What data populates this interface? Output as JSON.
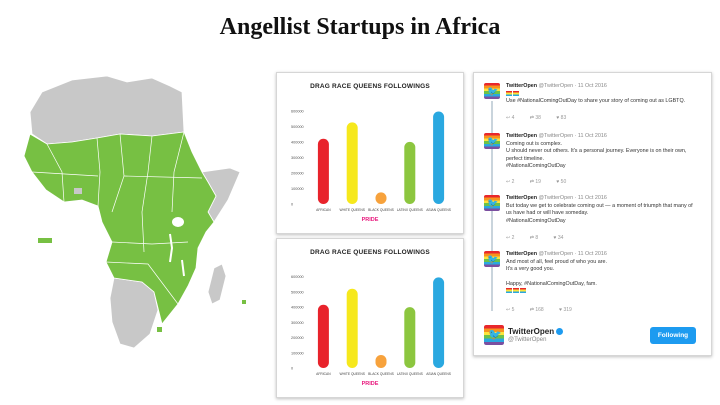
{
  "title": "Angellist Startups in Africa",
  "colors": {
    "africa_green": "#77c043",
    "africa_gray": "#c8c8c8"
  },
  "charts": [
    {
      "title": "DRAG RACE QUEENS FOLLOWINGS",
      "brand": "PRIDE",
      "yticks": [
        "600000",
        "500000",
        "400000",
        "300000",
        "200000",
        "100000",
        "0"
      ]
    },
    {
      "title": "DRAG RACE QUEENS FOLLOWINGS",
      "brand": "PRIDE",
      "yticks": [
        "600000",
        "500000",
        "400000",
        "300000",
        "200000",
        "100000",
        "0"
      ]
    }
  ],
  "chart_data": [
    {
      "type": "bar",
      "title": "DRAG RACE QUEENS FOLLOWINGS",
      "categories": [
        "AFRICAN",
        "WHITE QUEENS",
        "BLACK QUEENS",
        "LATINX QUEENS",
        "ASIAN QUEENS"
      ],
      "values": [
        420000,
        525000,
        75000,
        400000,
        595000
      ],
      "colors": [
        "#e8232b",
        "#f6e81c",
        "#f7a23c",
        "#8cc63f",
        "#2aa8e0"
      ],
      "ylim": [
        0,
        650000
      ],
      "grid": false
    },
    {
      "type": "bar",
      "title": "DRAG RACE QUEENS FOLLOWINGS",
      "categories": [
        "AFRICAN",
        "WHITE QUEENS",
        "BLACK QUEENS",
        "LATINX QUEENS",
        "ASIAN QUEENS"
      ],
      "values": [
        415000,
        520000,
        85000,
        400000,
        595000
      ],
      "colors": [
        "#e8232b",
        "#f6e81c",
        "#f7a23c",
        "#8cc63f",
        "#2aa8e0"
      ],
      "ylim": [
        0,
        650000
      ],
      "grid": false
    }
  ],
  "tweets": [
    {
      "name": "TwitterOpen",
      "handle": "@TwitterOpen · 11 Oct 2016",
      "lines": [
        "Use #NationalComingOutDay to share your story of coming out as LGBTQ."
      ],
      "replies": "4",
      "retweets": "38",
      "likes": "83"
    },
    {
      "name": "TwitterOpen",
      "handle": "@TwitterOpen · 11 Oct 2016",
      "lines": [
        "Coming out is complex.",
        "U should never out others. It's a personal journey. Everyone is on their own,",
        "perfect timeline.",
        "#NationalComingOutDay"
      ],
      "replies": "2",
      "retweets": "19",
      "likes": "50"
    },
    {
      "name": "TwitterOpen",
      "handle": "@TwitterOpen · 11 Oct 2016",
      "lines": [
        "But today we get to celebrate coming out — a moment of triumph that many of",
        "us have had or will have someday.",
        "#NationalComingOutDay"
      ],
      "replies": "2",
      "retweets": "8",
      "likes": "34"
    },
    {
      "name": "TwitterOpen",
      "handle": "@TwitterOpen · 11 Oct 2016",
      "lines": [
        "And most of all, feel proud of who you are.",
        "It's a very good you.",
        "",
        "Happy, #NationalComingOutDay, fam."
      ],
      "replies": "5",
      "retweets": "168",
      "likes": "319"
    }
  ],
  "profile": {
    "name": "TwitterOpen",
    "handle": "@TwitterOpen",
    "follow_label": "Following"
  }
}
